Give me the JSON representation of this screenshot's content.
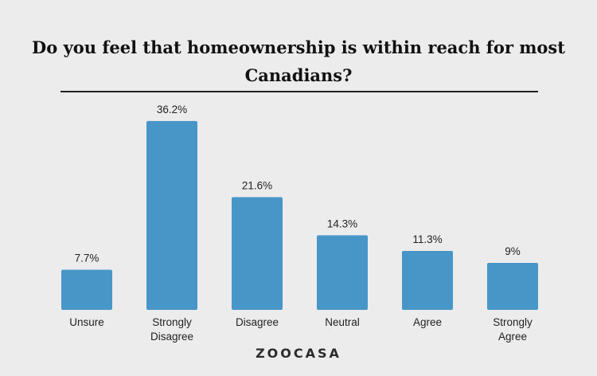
{
  "chart_data": {
    "type": "bar",
    "title": "Do you feel that homeownership is within reach for most Canadians?",
    "categories": [
      "Unsure",
      "Strongly Disagree",
      "Disagree",
      "Neutral",
      "Agree",
      "Strongly Agree"
    ],
    "values": [
      7.7,
      36.2,
      21.6,
      14.3,
      11.3,
      9
    ],
    "value_labels": [
      "7.7%",
      "36.2%",
      "21.6%",
      "14.3%",
      "11.3%",
      "9%"
    ],
    "xlabel": "",
    "ylabel": "",
    "ylim": [
      0,
      40
    ],
    "bar_color": "#4896c8",
    "grid": false,
    "legend": "none"
  },
  "brand": "ZOOCASA"
}
